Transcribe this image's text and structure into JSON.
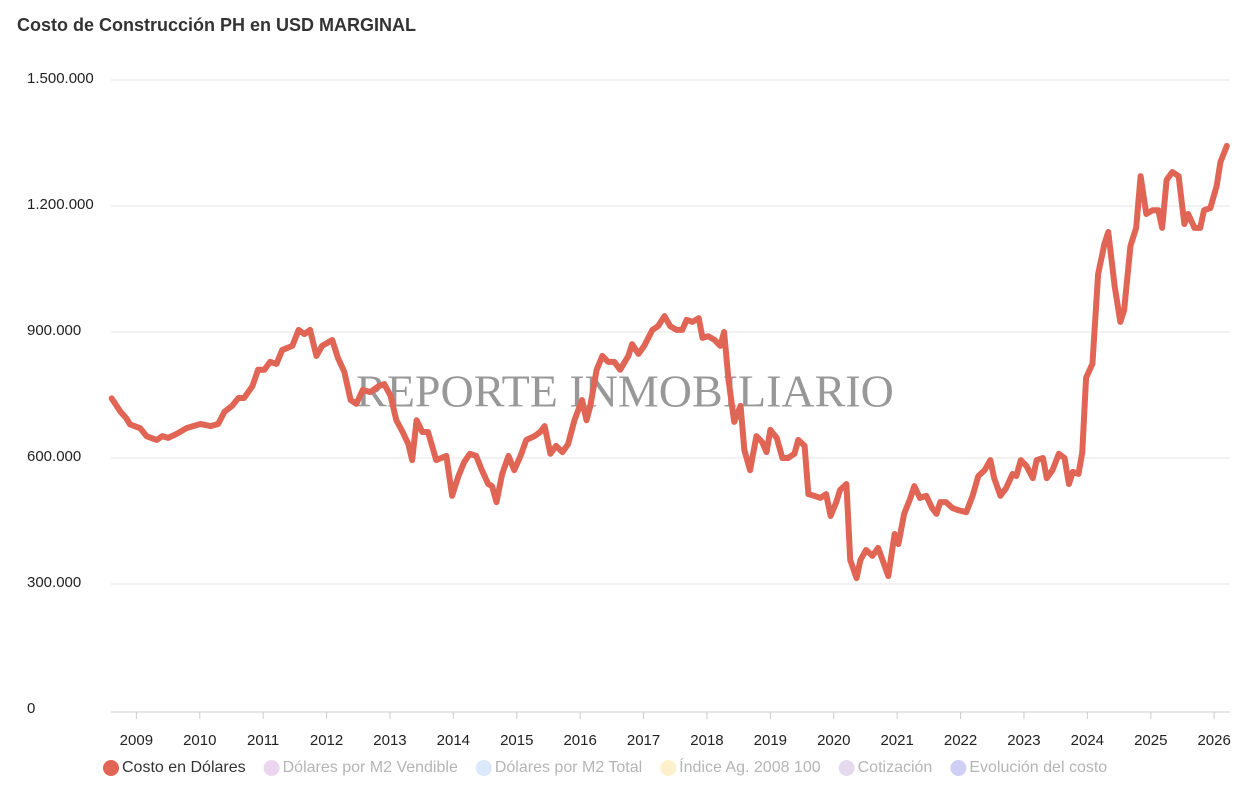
{
  "chart_data": {
    "type": "line",
    "title": "Costo de Construcción PH en USD MARGINAL",
    "watermark": "REPORTE INMOBILIARIO",
    "x": [
      2008.61,
      2008.75,
      2008.84,
      2008.9,
      2009.06,
      2009.16,
      2009.32,
      2009.41,
      2009.5,
      2009.63,
      2009.79,
      2010.01,
      2010.17,
      2010.29,
      2010.39,
      2010.51,
      2010.61,
      2010.7,
      2010.83,
      2010.92,
      2011.02,
      2011.11,
      2011.21,
      2011.3,
      2011.46,
      2011.56,
      2011.65,
      2011.74,
      2011.84,
      2011.93,
      2012.09,
      2012.18,
      2012.28,
      2012.38,
      2012.47,
      2012.57,
      2012.69,
      2012.82,
      2012.91,
      2013.01,
      2013.1,
      2013.2,
      2013.29,
      2013.35,
      2013.42,
      2013.51,
      2013.6,
      2013.73,
      2013.89,
      2013.98,
      2014.08,
      2014.17,
      2014.26,
      2014.36,
      2014.45,
      2014.55,
      2014.61,
      2014.68,
      2014.77,
      2014.87,
      2014.96,
      2015.06,
      2015.15,
      2015.28,
      2015.37,
      2015.44,
      2015.53,
      2015.62,
      2015.72,
      2015.81,
      2015.91,
      2016.03,
      2016.1,
      2016.16,
      2016.26,
      2016.35,
      2016.44,
      2016.54,
      2016.63,
      2016.76,
      2016.82,
      2016.92,
      2017.01,
      2017.14,
      2017.23,
      2017.33,
      2017.42,
      2017.52,
      2017.61,
      2017.68,
      2017.77,
      2017.87,
      2017.93,
      2018.02,
      2018.12,
      2018.21,
      2018.27,
      2018.34,
      2018.43,
      2018.53,
      2018.59,
      2018.68,
      2018.78,
      2018.87,
      2018.94,
      2019.0,
      2019.1,
      2019.19,
      2019.28,
      2019.38,
      2019.44,
      2019.54,
      2019.6,
      2019.69,
      2019.79,
      2019.88,
      2019.95,
      2020.04,
      2020.1,
      2020.2,
      2020.26,
      2020.36,
      2020.42,
      2020.51,
      2020.61,
      2020.7,
      2020.77,
      2020.86,
      2020.96,
      2021.02,
      2021.11,
      2021.21,
      2021.27,
      2021.36,
      2021.46,
      2021.55,
      2021.62,
      2021.68,
      2021.77,
      2021.87,
      2021.96,
      2022.09,
      2022.19,
      2022.28,
      2022.38,
      2022.47,
      2022.53,
      2022.63,
      2022.72,
      2022.82,
      2022.88,
      2022.95,
      2023.04,
      2023.14,
      2023.2,
      2023.3,
      2023.36,
      2023.45,
      2023.55,
      2023.64,
      2023.71,
      2023.77,
      2023.86,
      2023.92,
      2023.98,
      2024.08,
      2024.17,
      2024.27,
      2024.33,
      2024.43,
      2024.52,
      2024.58,
      2024.68,
      2024.77,
      2024.84,
      2024.93,
      2025.03,
      2025.12,
      2025.18,
      2025.25,
      2025.34,
      2025.44,
      2025.53,
      2025.59,
      2025.69,
      2025.78,
      2025.84,
      2025.94,
      2026.04,
      2026.1,
      2026.2
    ],
    "series": [
      {
        "name": "Costo en Dólares",
        "color": "#e06555",
        "values": [
          742000,
          710000,
          695000,
          680000,
          671000,
          652000,
          643000,
          652000,
          648000,
          657000,
          671000,
          681000,
          676000,
          681000,
          710000,
          724000,
          743000,
          743000,
          771000,
          810000,
          810000,
          829000,
          824000,
          857000,
          867000,
          905000,
          895000,
          905000,
          843000,
          867000,
          881000,
          838000,
          805000,
          738000,
          729000,
          762000,
          757000,
          771000,
          776000,
          748000,
          690000,
          662000,
          633000,
          595000,
          690000,
          662000,
          662000,
          595000,
          605000,
          510000,
          557000,
          590000,
          610000,
          605000,
          571000,
          538000,
          533000,
          495000,
          562000,
          605000,
          571000,
          605000,
          643000,
          652000,
          662000,
          676000,
          610000,
          629000,
          614000,
          633000,
          690000,
          738000,
          690000,
          724000,
          810000,
          843000,
          829000,
          829000,
          810000,
          843000,
          871000,
          848000,
          867000,
          905000,
          914000,
          938000,
          914000,
          905000,
          905000,
          929000,
          924000,
          933000,
          886000,
          890000,
          881000,
          867000,
          900000,
          786000,
          686000,
          724000,
          619000,
          571000,
          652000,
          638000,
          614000,
          667000,
          648000,
          600000,
          600000,
          610000,
          643000,
          629000,
          514000,
          510000,
          505000,
          514000,
          462000,
          495000,
          524000,
          538000,
          357000,
          314000,
          357000,
          381000,
          367000,
          386000,
          357000,
          319000,
          419000,
          395000,
          467000,
          505000,
          533000,
          505000,
          510000,
          481000,
          467000,
          495000,
          495000,
          481000,
          476000,
          471000,
          510000,
          557000,
          571000,
          595000,
          552000,
          510000,
          529000,
          562000,
          557000,
          595000,
          581000,
          552000,
          595000,
          600000,
          552000,
          571000,
          610000,
          600000,
          538000,
          567000,
          562000,
          614000,
          791000,
          824000,
          1038000,
          1110000,
          1138000,
          1010000,
          924000,
          952000,
          1105000,
          1148000,
          1271000,
          1181000,
          1190000,
          1190000,
          1148000,
          1262000,
          1281000,
          1271000,
          1157000,
          1181000,
          1148000,
          1148000,
          1190000,
          1195000,
          1248000,
          1305000,
          1343000
        ]
      },
      {
        "name": "Dólares por M2 Vendible",
        "color": "#ecd6ef",
        "hidden": true
      },
      {
        "name": "Dólares por M2 Total",
        "color": "#dbe9fb",
        "hidden": true
      },
      {
        "name": "Índice Ag. 2008 100",
        "color": "#fcf1cc",
        "hidden": true
      },
      {
        "name": "Cotización",
        "color": "#e6daf1",
        "hidden": true
      },
      {
        "name": "Evolución del costo",
        "color": "#cfcff4",
        "hidden": true
      }
    ],
    "xlim": [
      2008.6,
      2026.25
    ],
    "xticks": [
      2009,
      2010,
      2011,
      2012,
      2013,
      2014,
      2015,
      2016,
      2017,
      2018,
      2019,
      2020,
      2021,
      2022,
      2023,
      2024,
      2025,
      2026
    ],
    "ylim": [
      0,
      1500000
    ],
    "yticks": [
      0,
      {
        "value": 300000,
        "label": "300.000"
      },
      {
        "value": 600000,
        "label": "600.000"
      },
      {
        "value": 900000,
        "label": "900.000"
      },
      {
        "value": 1200000,
        "label": "1.200.000"
      },
      {
        "value": 1500000,
        "label": "1.500.000"
      }
    ],
    "grid": true
  }
}
